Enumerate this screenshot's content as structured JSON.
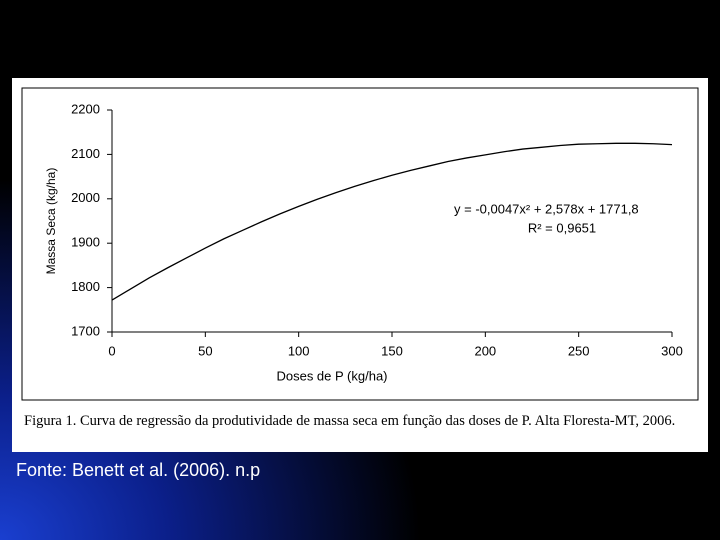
{
  "chart_data": {
    "type": "line",
    "x": [
      0,
      10,
      20,
      30,
      40,
      50,
      60,
      70,
      80,
      90,
      100,
      110,
      120,
      130,
      140,
      150,
      160,
      170,
      180,
      190,
      200,
      210,
      220,
      230,
      240,
      250,
      260,
      270,
      280,
      290,
      300
    ],
    "series": [
      {
        "color": "#000000",
        "values": [
          1772,
          1797,
          1822,
          1845,
          1867,
          1889,
          1910,
          1929,
          1948,
          1966,
          1983,
          1999,
          2014,
          2028,
          2041,
          2053,
          2064,
          2074,
          2084,
          2092,
          2099,
          2106,
          2112,
          2116,
          2120,
          2123,
          2124,
          2125,
          2125,
          2124,
          2122
        ]
      }
    ],
    "xlim": [
      0,
      300
    ],
    "ylim": [
      1700,
      2200
    ],
    "xticks": [
      0,
      50,
      100,
      150,
      200,
      250,
      300
    ],
    "yticks": [
      1700,
      1800,
      1900,
      2000,
      2100,
      2200
    ],
    "x_label": "Doses de P (kg/ha)",
    "y_label": "Massa Seca (kg/ha)",
    "annotations": [
      "y = -0,0047x² + 2,578x + 1771,8",
      "R² = 0,9651"
    ],
    "grid": false
  },
  "caption": "Figura 1. Curva de regressão da produtividade de massa seca em função das doses de P. Alta Floresta-MT, 2006.",
  "source": "Fonte: Benett et al. (2006). n.p"
}
